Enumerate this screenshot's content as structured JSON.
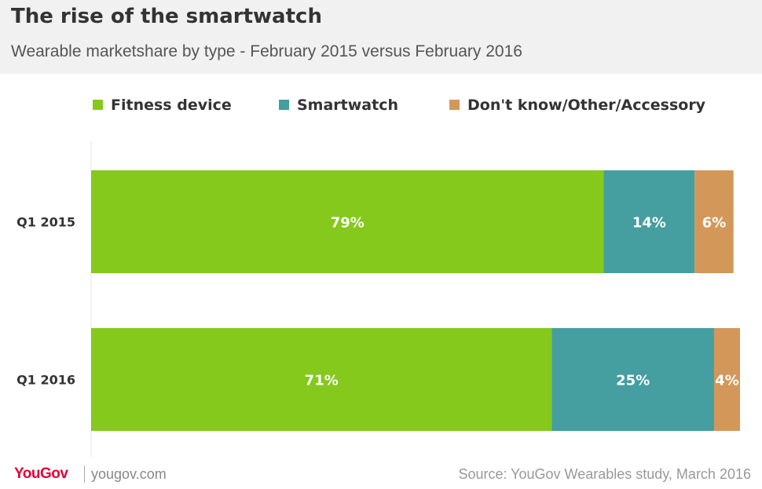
{
  "header": {
    "title": "The rise of the smartwatch",
    "subtitle": "Wearable marketshare by type - February 2015 versus February 2016"
  },
  "legend": [
    {
      "label": "Fitness device",
      "color": "#84c91c"
    },
    {
      "label": "Smartwatch",
      "color": "#459ea0"
    },
    {
      "label": "Don't know/Other/Accessory",
      "color": "#d3975a"
    }
  ],
  "chart_data": {
    "type": "bar",
    "orientation": "horizontal",
    "stacked": true,
    "title": "The rise of the smartwatch",
    "subtitle": "Wearable marketshare by type - February 2015 versus February 2016",
    "categories": [
      "Q1 2015",
      "Q1 2016"
    ],
    "series": [
      {
        "name": "Fitness device",
        "color": "#84c91c",
        "values": [
          79,
          71
        ],
        "labels": [
          "79%",
          "71%"
        ]
      },
      {
        "name": "Smartwatch",
        "color": "#459ea0",
        "values": [
          14,
          25
        ],
        "labels": [
          "14%",
          "25%"
        ]
      },
      {
        "name": "Don't know/Other/Accessory",
        "color": "#d3975a",
        "values": [
          6,
          4
        ],
        "labels": [
          "6%",
          "4%"
        ]
      }
    ],
    "xlim": [
      0,
      100
    ],
    "grid": false,
    "legend_position": "top"
  },
  "footer": {
    "logo": "YouGov",
    "site": "yougov.com",
    "source": "Source: YouGov Wearables study, March 2016"
  }
}
